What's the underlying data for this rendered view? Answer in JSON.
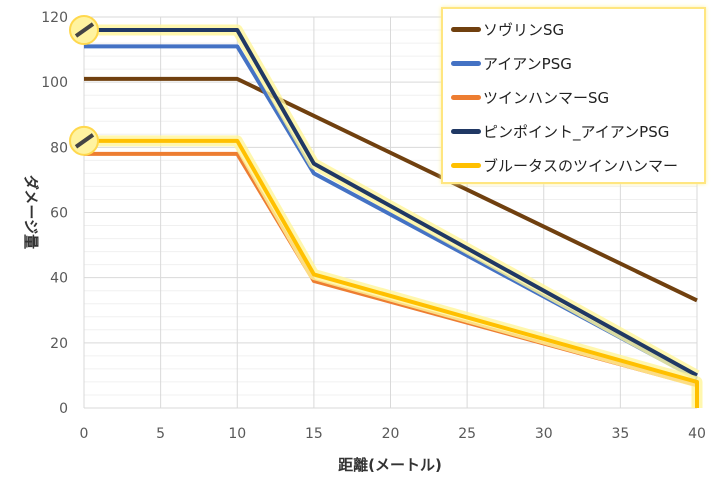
{
  "chart_data": {
    "type": "line",
    "title": "",
    "xlabel": "距離(メートル)",
    "ylabel": "ダメージ量",
    "xlim": [
      0,
      40
    ],
    "ylim": [
      0,
      120
    ],
    "xticks": [
      0,
      5,
      10,
      15,
      20,
      25,
      30,
      35,
      40
    ],
    "yticks": [
      0,
      20,
      40,
      60,
      80,
      100,
      120
    ],
    "grid": true,
    "legend_position": "top-right",
    "series": [
      {
        "name": "ソヴリンSG",
        "color": "#70400f",
        "x": [
          0,
          10,
          40
        ],
        "y": [
          101,
          101,
          33
        ]
      },
      {
        "name": "アイアンPSG",
        "color": "#4472c4",
        "x": [
          0,
          10,
          15,
          40
        ],
        "y": [
          111,
          111,
          72,
          9
        ]
      },
      {
        "name": "ツインハンマーSG",
        "color": "#ed7d31",
        "x": [
          0,
          10,
          15,
          40
        ],
        "y": [
          78,
          78,
          39,
          7
        ]
      },
      {
        "name": "ピンポイント_アイアンPSG",
        "color": "#203864",
        "x": [
          0,
          10,
          15,
          40
        ],
        "y": [
          116,
          116,
          75,
          10
        ],
        "glow": true
      },
      {
        "name": "ブルータスのツインハンマー",
        "color": "#ffc000",
        "x": [
          0,
          10,
          15,
          40,
          40
        ],
        "y": [
          82,
          82,
          41,
          8,
          0
        ],
        "glow": true
      }
    ]
  }
}
